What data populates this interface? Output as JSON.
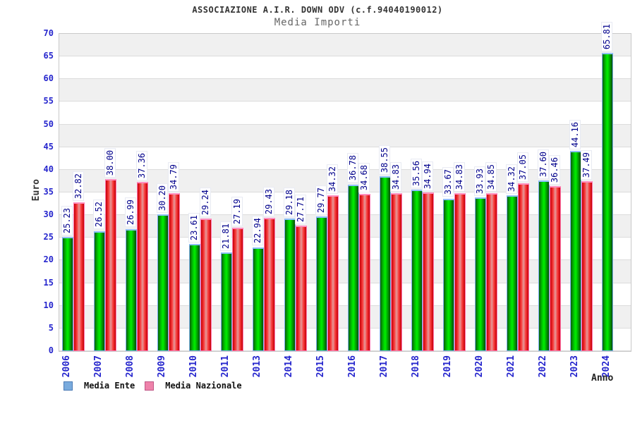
{
  "chart_data": {
    "type": "bar",
    "title": "ASSOCIAZIONE A.I.R. DOWN ODV (c.f.94040190012)",
    "subtitle": "Media Importi",
    "xlabel": "Anno",
    "ylabel": "Euro",
    "ylim": [
      0,
      70
    ],
    "ytick_step": 5,
    "grid": "horizontal-bands",
    "legend_position": "bottom-left",
    "categories": [
      "2006",
      "2007",
      "2008",
      "2009",
      "2010",
      "2011",
      "2013",
      "2014",
      "2015",
      "2016",
      "2017",
      "2018",
      "2019",
      "2020",
      "2021",
      "2022",
      "2023",
      "2024"
    ],
    "series": [
      {
        "name": "Media Ente",
        "values": [
          25.23,
          26.52,
          26.99,
          30.2,
          23.61,
          21.81,
          22.94,
          29.18,
          29.77,
          36.78,
          38.55,
          35.56,
          33.67,
          33.93,
          34.32,
          37.6,
          44.16,
          65.81
        ]
      },
      {
        "name": "Media Nazionale",
        "values": [
          32.82,
          38.0,
          37.36,
          34.79,
          29.24,
          27.19,
          29.43,
          27.71,
          34.32,
          34.68,
          34.83,
          34.94,
          34.83,
          34.85,
          37.05,
          36.46,
          37.49,
          null
        ]
      }
    ],
    "legend": [
      {
        "name": "Media Ente",
        "fill": "#7aabdd",
        "border": "#4a7ab5"
      },
      {
        "name": "Media Nazionale",
        "fill": "#ee82aa",
        "border": "#c05585"
      }
    ],
    "colors": {
      "ente_bar_fill": "#00ef00",
      "ente_bar_border": "#7fb0f0",
      "nazionale_bar_fill": "#e84040",
      "nazionale_bar_border": "#ff77b0",
      "value_label": "#00008c",
      "axis_tick_label": "#2525cd",
      "band_gray": "#f0f0f0",
      "gridline": "#dcdcdc"
    }
  }
}
